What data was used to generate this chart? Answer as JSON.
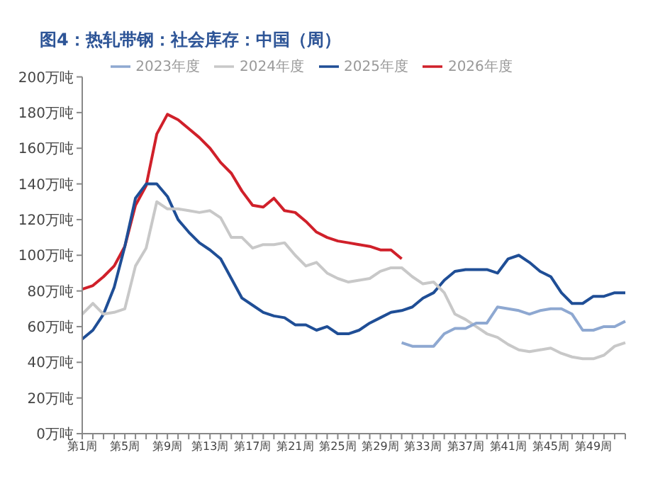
{
  "chart_data": {
    "type": "line",
    "title": "图4：热轧带钢：社会库存：中国（周）",
    "categories": [
      "第1周",
      null,
      null,
      null,
      "第5周",
      null,
      null,
      null,
      "第9周",
      null,
      null,
      null,
      "第13周",
      null,
      null,
      null,
      "第17周",
      null,
      null,
      null,
      "第21周",
      null,
      null,
      null,
      "第25周",
      null,
      null,
      null,
      "第29周",
      null,
      null,
      null,
      "第33周",
      null,
      null,
      null,
      "第37周",
      null,
      null,
      null,
      "第41周",
      null,
      null,
      null,
      "第45周",
      null,
      null,
      null,
      "第49周",
      null,
      null,
      null
    ],
    "series": [
      {
        "name": "2026年度",
        "color": "#d0202a",
        "values": [
          81,
          83,
          88,
          94,
          105,
          128,
          139,
          168,
          179,
          176,
          171,
          166,
          160,
          152,
          146,
          136,
          128,
          127,
          132,
          125,
          124,
          119,
          113,
          110,
          108,
          107,
          106,
          105,
          103,
          103,
          98,
          null,
          null,
          null,
          null,
          null,
          null,
          null,
          null,
          null,
          null,
          null,
          null,
          null,
          null,
          null,
          null,
          null,
          null,
          null,
          null,
          null
        ]
      },
      {
        "name": "2025年度",
        "color": "#1f4e96",
        "values": [
          53,
          58,
          67,
          82,
          105,
          132,
          140,
          140,
          133,
          120,
          113,
          107,
          103,
          98,
          87,
          76,
          72,
          68,
          66,
          65,
          61,
          61,
          58,
          60,
          56,
          56,
          58,
          62,
          65,
          68,
          69,
          71,
          76,
          79,
          86,
          91,
          92,
          92,
          92,
          90,
          98,
          100,
          96,
          91,
          88,
          79,
          73,
          73,
          77,
          77,
          79,
          79
        ]
      },
      {
        "name": "2024年度",
        "color": "#c8c8c8",
        "values": [
          67,
          73,
          67,
          68,
          70,
          94,
          104,
          130,
          126,
          126,
          125,
          124,
          125,
          121,
          110,
          110,
          104,
          106,
          106,
          107,
          100,
          94,
          96,
          90,
          87,
          85,
          86,
          87,
          91,
          93,
          93,
          88,
          84,
          85,
          79,
          67,
          64,
          60,
          56,
          54,
          50,
          47,
          46,
          47,
          48,
          45,
          43,
          42,
          42,
          44,
          49,
          51
        ]
      },
      {
        "name": "2023年度",
        "color": "#8ea8d1",
        "values": [
          null,
          null,
          null,
          null,
          null,
          null,
          null,
          null,
          null,
          null,
          null,
          null,
          null,
          null,
          null,
          null,
          null,
          null,
          null,
          null,
          null,
          null,
          null,
          null,
          null,
          null,
          null,
          null,
          null,
          null,
          51,
          49,
          49,
          49,
          56,
          59,
          59,
          62,
          62,
          71,
          70,
          69,
          67,
          69,
          70,
          70,
          67,
          58,
          58,
          60,
          60,
          63
        ]
      }
    ],
    "ylim": [
      0,
      200
    ],
    "yticks": [
      {
        "value": 0,
        "label": "0万吨"
      },
      {
        "value": 20,
        "label": "20万吨"
      },
      {
        "value": 40,
        "label": "40万吨"
      },
      {
        "value": 60,
        "label": "60万吨"
      },
      {
        "value": 80,
        "label": "80万吨"
      },
      {
        "value": 100,
        "label": "100万吨"
      },
      {
        "value": 120,
        "label": "120万吨"
      },
      {
        "value": 140,
        "label": "140万吨"
      },
      {
        "value": 160,
        "label": "160万吨"
      },
      {
        "value": 180,
        "label": "180万吨"
      },
      {
        "value": 200,
        "label": "200万吨"
      }
    ],
    "legend": "top",
    "grid": false,
    "marker": "none",
    "line_style": "solid"
  }
}
